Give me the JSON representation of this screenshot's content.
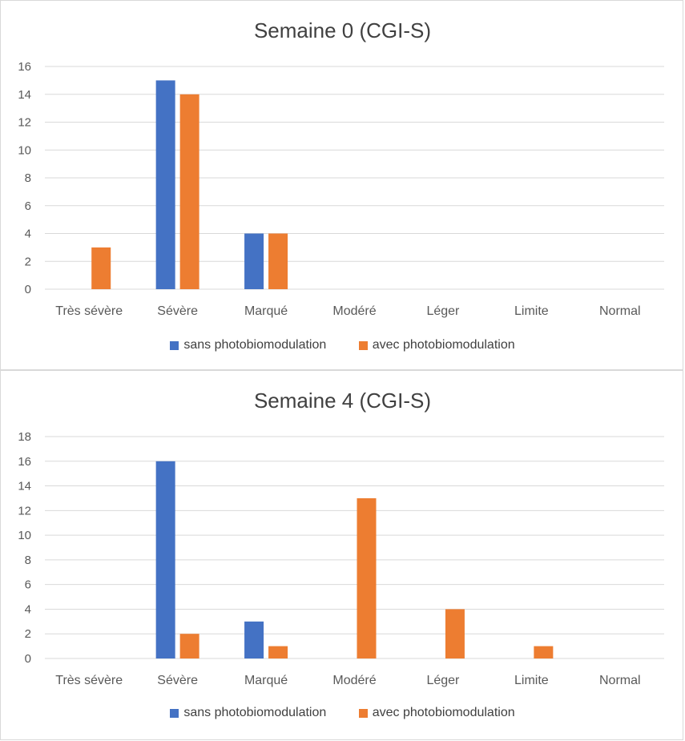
{
  "chart_data": [
    {
      "type": "bar",
      "title": "Semaine 0 (CGI-S)",
      "categories": [
        "Très sévère",
        "Sévère",
        "Marqué",
        "Modéré",
        "Léger",
        "Limite",
        "Normal"
      ],
      "series": [
        {
          "name": "sans photobiomodulation",
          "color": "#4472C4",
          "values": [
            0,
            15,
            4,
            0,
            0,
            0,
            0
          ]
        },
        {
          "name": "avec photobiomodulation",
          "color": "#ED7D31",
          "values": [
            3,
            14,
            4,
            0,
            0,
            0,
            0
          ]
        }
      ],
      "ylim": [
        0,
        16
      ],
      "yticks": [
        0,
        2,
        4,
        6,
        8,
        10,
        12,
        14,
        16
      ],
      "grid": true,
      "legend": "bottom"
    },
    {
      "type": "bar",
      "title": "Semaine 4 (CGI-S)",
      "categories": [
        "Très sévère",
        "Sévère",
        "Marqué",
        "Modéré",
        "Léger",
        "Limite",
        "Normal"
      ],
      "series": [
        {
          "name": "sans photobiomodulation",
          "color": "#4472C4",
          "values": [
            0,
            16,
            3,
            0,
            0,
            0,
            0
          ]
        },
        {
          "name": "avec photobiomodulation",
          "color": "#ED7D31",
          "values": [
            0,
            2,
            1,
            13,
            4,
            1,
            0
          ]
        }
      ],
      "ylim": [
        0,
        18
      ],
      "yticks": [
        0,
        2,
        4,
        6,
        8,
        10,
        12,
        14,
        16,
        18
      ],
      "grid": true,
      "legend": "bottom"
    }
  ]
}
